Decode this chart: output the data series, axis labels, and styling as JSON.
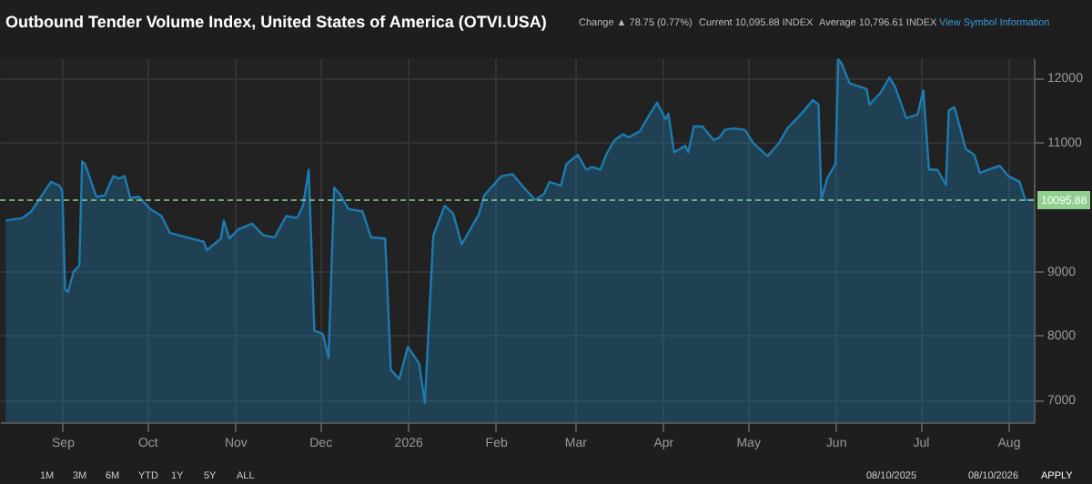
{
  "chart_data": {
    "type": "area",
    "title": "Outbound Tender Volume Index, United States of America (OTVI.USA)",
    "x": [
      "2025-08-12",
      "2025-08-18",
      "2025-08-21",
      "2025-08-28",
      "2025-08-31",
      "2025-09-01",
      "2025-09-02",
      "2025-09-03",
      "2025-09-05",
      "2025-09-07",
      "2025-09-08",
      "2025-09-09",
      "2025-09-13",
      "2025-09-16",
      "2025-09-19",
      "2025-09-21",
      "2025-09-23",
      "2025-09-25",
      "2025-09-28",
      "2025-10-02",
      "2025-10-06",
      "2025-10-09",
      "2025-10-14",
      "2025-10-21",
      "2025-10-22",
      "2025-10-27",
      "2025-10-28",
      "2025-10-30",
      "2025-11-02",
      "2025-11-07",
      "2025-11-11",
      "2025-11-15",
      "2025-11-19",
      "2025-11-23",
      "2025-11-25",
      "2025-11-27",
      "2025-11-29",
      "2025-12-02",
      "2025-12-04",
      "2025-12-06",
      "2025-12-08",
      "2025-12-11",
      "2025-12-16",
      "2025-12-19",
      "2025-12-24",
      "2025-12-26",
      "2025-12-29",
      "2026-01-01",
      "2026-01-05",
      "2026-01-07",
      "2026-01-10",
      "2026-01-14",
      "2026-01-17",
      "2026-01-20",
      "2026-01-26",
      "2026-01-28",
      "2026-02-03",
      "2026-02-07",
      "2026-02-11",
      "2026-02-15",
      "2026-02-18",
      "2026-02-20",
      "2026-02-24",
      "2026-02-26",
      "2026-03-02",
      "2026-03-05",
      "2026-03-07",
      "2026-03-10",
      "2026-03-12",
      "2026-03-15",
      "2026-03-18",
      "2026-03-20",
      "2026-03-24",
      "2026-03-27",
      "2026-03-30",
      "2026-04-02",
      "2026-04-03",
      "2026-04-05",
      "2026-04-09",
      "2026-04-10",
      "2026-04-12",
      "2026-04-15",
      "2026-04-19",
      "2026-04-21",
      "2026-04-23",
      "2026-04-26",
      "2026-04-30",
      "2026-05-03",
      "2026-05-08",
      "2026-05-12",
      "2026-05-15",
      "2026-05-20",
      "2026-05-24",
      "2026-05-26",
      "2026-05-27",
      "2026-05-29",
      "2026-06-01",
      "2026-06-02",
      "2026-06-03",
      "2026-06-06",
      "2026-06-12",
      "2026-06-13",
      "2026-06-17",
      "2026-06-20",
      "2026-06-22",
      "2026-06-26",
      "2026-06-30",
      "2026-07-02",
      "2026-07-04",
      "2026-07-07",
      "2026-07-10",
      "2026-07-11",
      "2026-07-13",
      "2026-07-17",
      "2026-07-20",
      "2026-07-22",
      "2026-07-25",
      "2026-07-29",
      "2026-08-01",
      "2026-08-05",
      "2026-08-07",
      "2026-08-10"
    ],
    "series": [
      {
        "color": "#1d7bb0",
        "values": [
          9780,
          9820,
          9920,
          10380,
          10320,
          10240,
          8710,
          8670,
          8990,
          9080,
          10700,
          10660,
          10150,
          10170,
          10470,
          10430,
          10470,
          10130,
          10150,
          9960,
          9850,
          9590,
          9530,
          9450,
          9320,
          9500,
          9780,
          9500,
          9640,
          9730,
          9550,
          9520,
          9850,
          9820,
          10010,
          10570,
          8070,
          8020,
          7650,
          10290,
          10190,
          9960,
          9920,
          9520,
          9500,
          7460,
          7320,
          7820,
          7560,
          6950,
          9550,
          10010,
          9890,
          9410,
          9870,
          10170,
          10470,
          10500,
          10290,
          10100,
          10190,
          10380,
          10320,
          10660,
          10800,
          10570,
          10610,
          10570,
          10800,
          11030,
          11120,
          11070,
          11170,
          11400,
          11610,
          11350,
          11440,
          10840,
          10940,
          10840,
          11240,
          11240,
          11030,
          11070,
          11190,
          11210,
          11190,
          10980,
          10780,
          10980,
          11210,
          11440,
          11650,
          11580,
          10100,
          10430,
          10660,
          12280,
          12230,
          11910,
          11820,
          11580,
          11770,
          12000,
          11860,
          11370,
          11430,
          11800,
          10570,
          10570,
          10330,
          11490,
          11540,
          10890,
          10800,
          10520,
          10570,
          10630,
          10470,
          10380,
          10100,
          10100
        ]
      }
    ],
    "xlim": [
      "2025-08-10",
      "2026-08-10"
    ],
    "xticks": [
      {
        "value": "2025-09-01",
        "label": "Sep"
      },
      {
        "value": "2025-10-01",
        "label": "Oct"
      },
      {
        "value": "2025-11-01",
        "label": "Nov"
      },
      {
        "value": "2025-12-01",
        "label": "Dec"
      },
      {
        "value": "2026-01-01",
        "label": "2026"
      },
      {
        "value": "2026-02-01",
        "label": "Feb"
      },
      {
        "value": "2026-03-01",
        "label": "Mar"
      },
      {
        "value": "2026-04-01",
        "label": "Apr"
      },
      {
        "value": "2026-05-01",
        "label": "May"
      },
      {
        "value": "2026-06-01",
        "label": "Jun"
      },
      {
        "value": "2026-07-01",
        "label": "Jul"
      },
      {
        "value": "2026-08-01",
        "label": "Aug"
      }
    ],
    "ylim": [
      6650,
      12300
    ],
    "yticks": [
      7000,
      8000,
      9000,
      11000,
      12000
    ],
    "grid": true,
    "ref_lines": [
      {
        "axis": "y",
        "value": 10095.88,
        "label": "10095.88",
        "color": "#8fd08f",
        "line_style": "dashed"
      }
    ],
    "annotations": [
      "Change ▲ 78.75 (0.77%)",
      "Current 10,095.88 INDEX",
      "Average 10,796.61 INDEX",
      "View Symbol Information",
      "1M",
      "3M",
      "6M",
      "YTD",
      "1Y",
      "5Y",
      "ALL",
      "08/10/2025",
      "08/10/2026",
      "APPLY"
    ]
  }
}
